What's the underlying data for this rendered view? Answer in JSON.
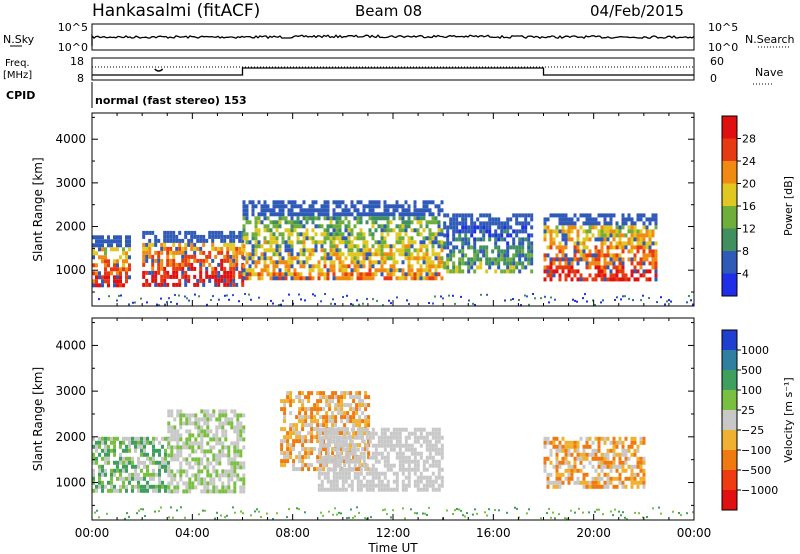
{
  "header": {
    "station": "Hankasalmi (fitACF)",
    "beam": "Beam 08",
    "date": "04/Feb/2015"
  },
  "strip": {
    "nsky_label": "N.Sky",
    "nsky_ticks": [
      "10^5",
      "10^0"
    ],
    "nsearch_label": "N.Search",
    "nsearch_ticks": [
      "10^5",
      "10^0"
    ],
    "freq_label": "Freq.",
    "freq_unit": "[MHz]",
    "freq_ticks": [
      "18",
      "8"
    ],
    "nave_label": "Nave",
    "nave_ticks": [
      "60",
      "0"
    ],
    "cpid_label": "CPID",
    "cpid_text": "normal (fast stereo) 153"
  },
  "colors": {
    "power": [
      "#1f2fe8",
      "#2f5ab8",
      "#3f8f5f",
      "#6fae3a",
      "#e0c820",
      "#f08a10",
      "#e83a10",
      "#e01010"
    ],
    "velocity": [
      "#e01010",
      "#f03a10",
      "#f07a10",
      "#f0b030",
      "#c8c8c8",
      "#7ac040",
      "#3f9f5f",
      "#2f7fa0",
      "#1f3fd0"
    ],
    "ground_scatter": "#c8c8c8"
  },
  "chart_data": [
    {
      "type": "heatmap",
      "name": "power",
      "ylabel": "Slant Range [km]",
      "xlabel": "",
      "ylim": [
        180,
        4600
      ],
      "y_ticks": [
        "1000",
        "2000",
        "3000",
        "4000"
      ],
      "colorbar_label": "Power [dB]",
      "colorbar_ticks": [
        "4",
        "8",
        "12",
        "16",
        "20",
        "24",
        "28"
      ],
      "colorbar_range": [
        0,
        32
      ],
      "x_ticks_hours": [
        0,
        4,
        8,
        12,
        16,
        20,
        24
      ],
      "series": [
        {
          "name": "echo patches",
          "values": [
            {
              "t0": 0.0,
              "t1": 1.5,
              "r0": 650,
              "r1": 1800,
              "p": 22
            },
            {
              "t0": 2.0,
              "t1": 6.0,
              "r0": 700,
              "r1": 1900,
              "p": 24
            },
            {
              "t0": 6.0,
              "t1": 14.0,
              "r0": 850,
              "r1": 2600,
              "p": 16
            },
            {
              "t0": 14.0,
              "t1": 17.5,
              "r0": 1000,
              "r1": 2300,
              "p": 8
            },
            {
              "t0": 18.0,
              "t1": 22.5,
              "r0": 800,
              "r1": 2300,
              "p": 22
            }
          ]
        }
      ]
    },
    {
      "type": "heatmap",
      "name": "velocity",
      "ylabel": "Slant Range [km]",
      "xlabel": "Time UT",
      "ylim": [
        180,
        4600
      ],
      "y_ticks": [
        "1000",
        "2000",
        "3000",
        "4000"
      ],
      "colorbar_label": "Velocity [m s⁻¹]",
      "colorbar_ticks": [
        "1000",
        "500",
        "100",
        "25",
        "−25",
        "−100",
        "−500",
        "−1000"
      ],
      "x_ticks": [
        "00:00",
        "04:00",
        "08:00",
        "12:00",
        "16:00",
        "20:00",
        "00:00"
      ],
      "series": [
        {
          "name": "echo patches",
          "values": [
            {
              "t0": 0.0,
              "t1": 3.0,
              "r0": 800,
              "r1": 2000,
              "v": 100
            },
            {
              "t0": 3.0,
              "t1": 6.0,
              "r0": 800,
              "r1": 2600,
              "v": 25
            },
            {
              "t0": 7.5,
              "t1": 11.0,
              "r0": 1300,
              "r1": 3000,
              "v": -100
            },
            {
              "t0": 9.0,
              "t1": 14.0,
              "r0": 850,
              "r1": 2200,
              "v": 0
            },
            {
              "t0": 18.0,
              "t1": 22.0,
              "r0": 900,
              "r1": 2000,
              "v": -100
            }
          ]
        }
      ]
    }
  ]
}
